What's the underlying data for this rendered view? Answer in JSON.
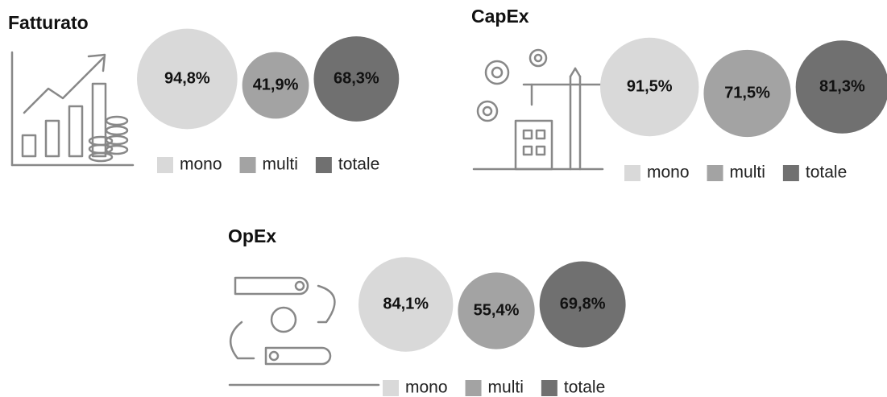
{
  "chart_data": [
    {
      "type": "bubble",
      "title": "Fatturato",
      "categories": [
        "mono",
        "multi",
        "totale"
      ],
      "values": [
        94.8,
        41.9,
        68.3
      ],
      "value_labels": [
        "94,8%",
        "41,9%",
        "68,3%"
      ],
      "colors": [
        "#d9d9d9",
        "#a3a3a3",
        "#707070"
      ]
    },
    {
      "type": "bubble",
      "title": "CapEx",
      "categories": [
        "mono",
        "multi",
        "totale"
      ],
      "values": [
        91.5,
        71.5,
        81.3
      ],
      "value_labels": [
        "91,5%",
        "71,5%",
        "81,3%"
      ],
      "colors": [
        "#d9d9d9",
        "#a3a3a3",
        "#707070"
      ]
    },
    {
      "type": "bubble",
      "title": "OpEx",
      "categories": [
        "mono",
        "multi",
        "totale"
      ],
      "values": [
        84.1,
        55.4,
        69.8
      ],
      "value_labels": [
        "84,1%",
        "55,4%",
        "69,8%"
      ],
      "colors": [
        "#d9d9d9",
        "#a3a3a3",
        "#707070"
      ]
    }
  ]
}
